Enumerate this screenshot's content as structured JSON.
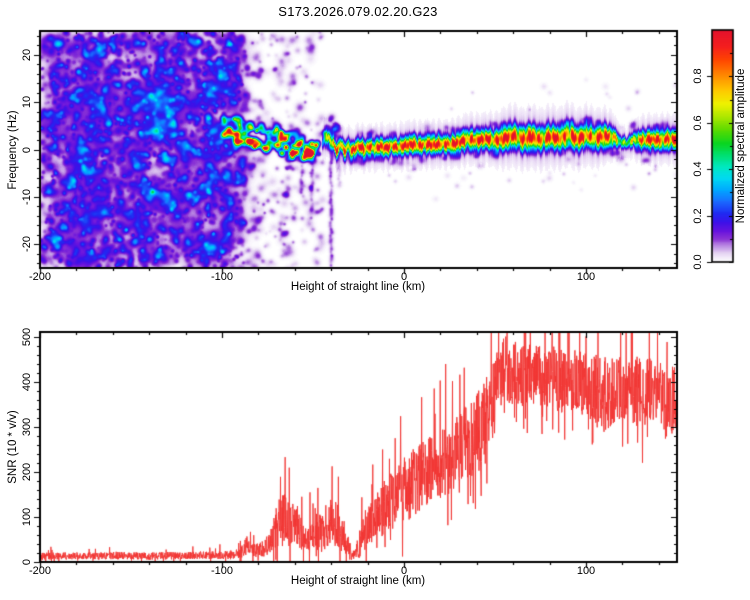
{
  "figure": {
    "title": "S173.2026.079.02.20.G23"
  },
  "colors": {
    "background": "#ffffff",
    "axis": "#000000",
    "snr_line": "#f23633"
  },
  "chart_data": [
    {
      "type": "heatmap",
      "name": "doppler-spectrogram",
      "xlabel": "Height of straight line (km)",
      "ylabel": "Frequency (Hz)",
      "xlim": [
        -200,
        150
      ],
      "ylim": [
        -25,
        25
      ],
      "xticks": [
        -200,
        -100,
        0,
        100
      ],
      "xtick_minor_step": 20,
      "yticks": [
        -20,
        -10,
        0,
        10,
        20
      ],
      "ytick_minor_step": 2,
      "grid": false,
      "colorbar": {
        "label": "Normalized spectral amplitude",
        "ticks": [
          0.0,
          0.2,
          0.4,
          0.6,
          0.8
        ],
        "vmin": 0.0,
        "vmax": 1.0
      },
      "colormap_stops": [
        [
          0.0,
          "#ffffff"
        ],
        [
          0.02,
          "#f2eaf9"
        ],
        [
          0.045,
          "#ddc6ef"
        ],
        [
          0.07,
          "#b988e2"
        ],
        [
          0.1,
          "#8a33d4"
        ],
        [
          0.13,
          "#6a14dd"
        ],
        [
          0.17,
          "#3c10e8"
        ],
        [
          0.21,
          "#1f2bf2"
        ],
        [
          0.26,
          "#1a6cff"
        ],
        [
          0.31,
          "#00a8ff"
        ],
        [
          0.36,
          "#00d9f2"
        ],
        [
          0.41,
          "#00e9c0"
        ],
        [
          0.46,
          "#00e070"
        ],
        [
          0.51,
          "#0ad520"
        ],
        [
          0.57,
          "#5ddb00"
        ],
        [
          0.63,
          "#b2e800"
        ],
        [
          0.68,
          "#eef200"
        ],
        [
          0.74,
          "#ffc800"
        ],
        [
          0.8,
          "#ff8c00"
        ],
        [
          0.87,
          "#ff4500"
        ],
        [
          0.93,
          "#f41e1e"
        ],
        [
          1.0,
          "#e3112d"
        ]
      ],
      "signal_ridge": {
        "comment": "coherent carrier line; amplitude ~1 (red core), emerges near -45 km",
        "x": [
          -45,
          -43,
          -41,
          -39,
          -37,
          -35,
          -33,
          -31,
          -29,
          -27,
          -25,
          -22,
          -19,
          -16,
          -13,
          -10,
          -7,
          -4,
          0,
          4,
          8,
          12,
          16,
          20,
          25,
          30,
          35,
          40,
          45,
          50,
          55,
          60,
          65,
          70,
          75,
          80,
          85,
          90,
          95,
          100,
          105,
          110,
          115,
          118,
          122,
          126,
          130,
          135,
          140,
          145,
          150
        ],
        "freq": [
          1.5,
          2.8,
          2.2,
          1.2,
          -0.3,
          1.5,
          -0.4,
          0.9,
          -0.3,
          0.4,
          0.8,
          0.2,
          0.7,
          0.3,
          0.8,
          0.4,
          0.9,
          0.5,
          0.9,
          1.2,
          0.9,
          1.2,
          1.0,
          1.3,
          1.2,
          1.6,
          2.3,
          2.0,
          2.4,
          2.0,
          2.5,
          3.0,
          2.2,
          2.7,
          2.2,
          2.8,
          2.4,
          3.4,
          2.2,
          3.1,
          2.4,
          3.0,
          2.8,
          1.8,
          1.4,
          2.2,
          2.1,
          2.2,
          2.2,
          2.3,
          2.2
        ],
        "amp": [
          0.5,
          0.6,
          0.7,
          0.75,
          0.8,
          0.85,
          0.85,
          0.9,
          0.95,
          0.95,
          0.95,
          0.95,
          0.95,
          0.95,
          1,
          0.95,
          1,
          1,
          1,
          1,
          1,
          1,
          1,
          1,
          1,
          1,
          1,
          1,
          1,
          1,
          1,
          1,
          0.95,
          1,
          0.95,
          1,
          0.95,
          0.95,
          0.95,
          0.95,
          0.95,
          0.9,
          0.9,
          0.6,
          0.5,
          0.7,
          0.95,
          0.95,
          0.98,
          0.98,
          0.98
        ],
        "sigma_hz": [
          0.8,
          0.8,
          0.8,
          0.85,
          0.85,
          0.85,
          0.9,
          0.9,
          0.9,
          0.9,
          0.95,
          0.95,
          0.95,
          0.95,
          0.95,
          0.95,
          0.95,
          0.95,
          1,
          1,
          1,
          1,
          1,
          1,
          1,
          1.05,
          1.1,
          1.1,
          1.1,
          1.15,
          1.3,
          1.35,
          1.3,
          1.35,
          1.3,
          1.35,
          1.3,
          1.35,
          1.3,
          1.3,
          1.25,
          1.2,
          1,
          0.7,
          0.6,
          0.8,
          1,
          1.05,
          1.05,
          1.05,
          1.05
        ]
      },
      "precursor_clusters": {
        "comment": "incoherent scattered signal blobs before ridge onset",
        "x": [
          -100,
          -92,
          -84,
          -76,
          -70,
          -64,
          -58,
          -52,
          -47
        ],
        "freq": [
          4.5,
          4,
          3,
          2.5,
          2,
          1,
          0.5,
          0,
          0.6
        ],
        "spread_hz": [
          2.5,
          2.5,
          2.5,
          2.8,
          3,
          3,
          2.5,
          2,
          1.5
        ],
        "max_amp": [
          0.45,
          0.5,
          0.55,
          0.5,
          0.65,
          0.6,
          0.55,
          0.5,
          0.6
        ]
      },
      "noise_field": {
        "dense_region_x": [
          -200,
          -88
        ],
        "sparse_region_x": [
          -88,
          -45
        ],
        "max_amplitude": 0.11,
        "vertical_streaks_x_km": [
          -56.5,
          -50.8,
          -40.4,
          -35.8
        ]
      }
    },
    {
      "type": "line",
      "name": "snr-profile",
      "xlabel": "Height of straight line (km)",
      "ylabel": "SNR (10 * v/v)",
      "xlim": [
        -200,
        150
      ],
      "ylim": [
        0,
        510
      ],
      "xticks": [
        -200,
        -100,
        0,
        100
      ],
      "xtick_minor_step": 20,
      "yticks": [
        0,
        100,
        200,
        300,
        400,
        500
      ],
      "ytick_minor_step": 20,
      "grid": false,
      "line_color": "#f23633",
      "envelope": {
        "comment": "noisy trace; mean and half-range jitter sampled by height (km)",
        "x": [
          -200,
          -190,
          -180,
          -170,
          -160,
          -150,
          -140,
          -130,
          -120,
          -110,
          -100,
          -95,
          -90,
          -86,
          -83,
          -80,
          -77,
          -74,
          -71,
          -68,
          -65,
          -62,
          -59,
          -56,
          -53,
          -50,
          -48,
          -45,
          -42,
          -39,
          -36,
          -33,
          -30,
          -27,
          -24,
          -20,
          -16,
          -12,
          -8,
          -4,
          0,
          5,
          10,
          15,
          20,
          25,
          30,
          35,
          40,
          44,
          48,
          52,
          56,
          60,
          65,
          70,
          75,
          80,
          85,
          90,
          95,
          100,
          105,
          110,
          115,
          120,
          125,
          130,
          135,
          140,
          145,
          150
        ],
        "mean": [
          13,
          13,
          14,
          13,
          14,
          14,
          13,
          14,
          14,
          15,
          15,
          16,
          18,
          40,
          25,
          26,
          30,
          45,
          70,
          90,
          95,
          90,
          80,
          60,
          45,
          80,
          70,
          60,
          85,
          90,
          75,
          60,
          25,
          15,
          45,
          80,
          100,
          115,
          135,
          145,
          160,
          175,
          190,
          205,
          215,
          230,
          250,
          270,
          285,
          305,
          330,
          420,
          430,
          420,
          415,
          420,
          410,
          415,
          400,
          405,
          400,
          390,
          380,
          370,
          375,
          380,
          385,
          375,
          380,
          370,
          350,
          360
        ],
        "spread": [
          8,
          8,
          8,
          8,
          9,
          8,
          8,
          9,
          8,
          9,
          9,
          10,
          12,
          22,
          14,
          16,
          18,
          28,
          45,
          55,
          60,
          55,
          50,
          35,
          30,
          50,
          45,
          40,
          55,
          60,
          50,
          40,
          20,
          10,
          35,
          50,
          55,
          60,
          65,
          70,
          75,
          75,
          75,
          75,
          80,
          80,
          80,
          85,
          90,
          95,
          100,
          80,
          75,
          70,
          70,
          70,
          70,
          70,
          70,
          70,
          70,
          75,
          80,
          85,
          80,
          75,
          75,
          80,
          75,
          80,
          85,
          80
        ]
      },
      "peak_value": 510,
      "noise_floor": 15
    }
  ]
}
